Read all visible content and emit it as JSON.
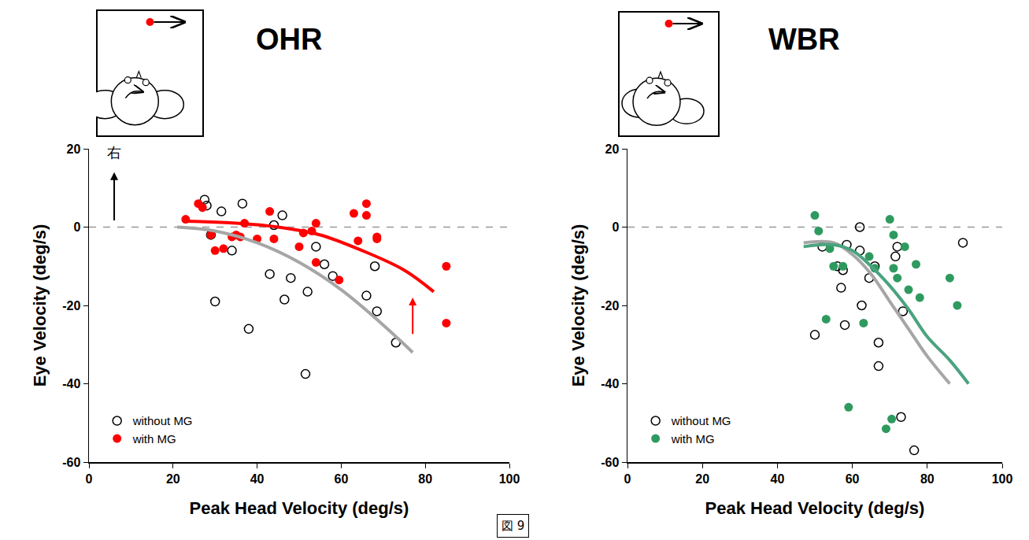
{
  "caption": "図 9",
  "chart_data": [
    {
      "type": "scatter",
      "title": "OHR",
      "x_label": "Peak Head Velocity (deg/s)",
      "y_label": "Eye Velocity (deg/s)",
      "xlim": [
        0,
        100
      ],
      "ylim": [
        -60,
        20
      ],
      "xticks": [
        0,
        20,
        40,
        60,
        80,
        100
      ],
      "yticks": [
        -60,
        -40,
        -20,
        0,
        20
      ],
      "grid": false,
      "legend": "lower left",
      "reference_lines": [
        {
          "y": 0,
          "line_style": "dash",
          "color": "#999999"
        }
      ],
      "annotations": [
        {
          "text": "右",
          "x": 6,
          "y": 16.5,
          "color": "#000000"
        }
      ],
      "arrows": [
        {
          "x": 6,
          "y0": 0,
          "y1": 14,
          "color": "#000000"
        },
        {
          "x": 77,
          "y0": -29,
          "y1": -18,
          "color": "#ff0000"
        }
      ],
      "series": [
        {
          "name": "without MG",
          "color": "#000000",
          "marker": "open circle",
          "x": [
            27.5,
            28,
            29,
            31.5,
            30,
            34,
            36.5,
            38,
            43,
            44,
            46,
            46.5,
            48,
            51.5,
            52,
            54,
            56,
            58,
            66,
            68,
            68.5,
            73
          ],
          "values": [
            7,
            5.5,
            -2,
            4,
            -19,
            -6,
            6,
            -26,
            -12,
            0.5,
            3,
            -18.5,
            -13,
            -37.5,
            -16.5,
            -5,
            -9.5,
            -12.5,
            -17.5,
            -10,
            -21.5,
            -29.5
          ]
        },
        {
          "name": "with MG",
          "color": "#ff0000",
          "marker": "circle",
          "x": [
            23,
            26,
            27,
            29,
            30,
            32,
            34,
            35,
            36,
            37,
            40,
            43,
            44,
            50,
            51,
            53,
            54,
            54,
            59.5,
            63,
            64,
            66,
            66,
            68.5,
            68.5,
            85,
            85
          ],
          "values": [
            2,
            6,
            5,
            -2,
            -6,
            -5.5,
            -2.5,
            -2,
            -2.5,
            1,
            -3,
            4,
            -3,
            -5,
            -1.5,
            -1,
            -9,
            1,
            -13.5,
            3.5,
            -3.5,
            3,
            6,
            -3,
            -2.5,
            -10,
            -24.5
          ]
        },
        {
          "type": "line",
          "color": "#a6a6a6",
          "x": [
            21,
            30,
            40,
            50,
            60,
            70,
            77
          ],
          "values": [
            0,
            -1,
            -4,
            -9,
            -16,
            -25,
            -32
          ]
        },
        {
          "type": "line",
          "color": "#ff0000",
          "x": [
            23,
            35,
            45,
            55,
            65,
            75,
            82
          ],
          "values": [
            1.5,
            1,
            0,
            -2,
            -6,
            -11,
            -16.5
          ]
        }
      ]
    },
    {
      "type": "scatter",
      "title": "WBR",
      "x_label": "Peak Head Velocity (deg/s)",
      "y_label": "Eye Velocity (deg/s)",
      "xlim": [
        0,
        100
      ],
      "ylim": [
        -60,
        20
      ],
      "xticks": [
        0,
        20,
        40,
        60,
        80,
        100
      ],
      "yticks": [
        -60,
        -40,
        -20,
        0,
        20
      ],
      "grid": false,
      "legend": "lower left",
      "reference_lines": [
        {
          "y": 0,
          "line_style": "dash",
          "color": "#999999"
        }
      ],
      "series": [
        {
          "name": "without MG",
          "color": "#000000",
          "marker": "open circle",
          "x": [
            50,
            52,
            56,
            57,
            57.5,
            58,
            58.5,
            62,
            62,
            62.5,
            64.5,
            66,
            67,
            67,
            71.5,
            72,
            73,
            73.5,
            76.5,
            89.5
          ],
          "values": [
            -27.5,
            -5,
            -10,
            -15.5,
            -11,
            -25,
            -4.5,
            0,
            -6,
            -20,
            -13,
            -10,
            -29.5,
            -35.5,
            -7.5,
            -5,
            -48.5,
            -21.5,
            -57,
            -4
          ]
        },
        {
          "name": "with MG",
          "color": "#2f9a5f",
          "marker": "circle",
          "x": [
            50,
            51,
            53,
            54,
            55,
            57.5,
            59,
            63,
            64.5,
            66,
            69,
            70,
            70.5,
            71,
            71,
            72,
            74,
            75,
            77,
            78,
            86,
            88
          ],
          "values": [
            3,
            -1,
            -23.5,
            -5.5,
            -10,
            -10,
            -46,
            -24.5,
            -7.5,
            -10.5,
            -51.5,
            2,
            -49,
            -2,
            -10.5,
            -13,
            -5,
            -16,
            -9.5,
            -18,
            -13,
            -20
          ]
        },
        {
          "type": "line",
          "color": "#a6a6a6",
          "x": [
            47,
            55,
            60,
            65,
            70,
            75,
            80,
            86
          ],
          "values": [
            -4,
            -4,
            -7,
            -12,
            -19,
            -26,
            -33,
            -40
          ]
        },
        {
          "type": "line",
          "color": "#4aa37f",
          "x": [
            47,
            55,
            60,
            65,
            70,
            75,
            80,
            86,
            91
          ],
          "values": [
            -5,
            -4.5,
            -6,
            -10,
            -15,
            -21,
            -28,
            -34,
            -40
          ]
        }
      ]
    }
  ]
}
